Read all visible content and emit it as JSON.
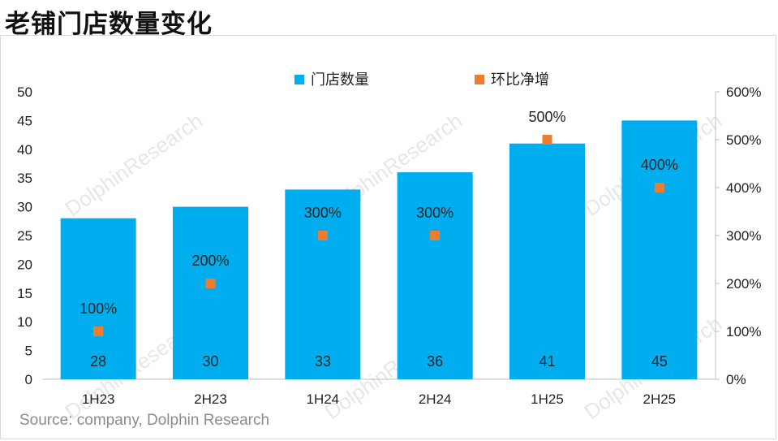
{
  "title": "老铺门店数量变化",
  "source": "Source: company, Dolphin Research",
  "watermark": "DolphinResearch",
  "chart_data": {
    "type": "bar",
    "categories": [
      "1H23",
      "2H23",
      "1H24",
      "2H24",
      "1H25",
      "2H25"
    ],
    "series": [
      {
        "name": "门店数量",
        "type": "bar",
        "axis": "left",
        "color": "#00AEEF",
        "values": [
          28,
          30,
          33,
          36,
          41,
          45
        ],
        "labels": [
          "28",
          "30",
          "33",
          "36",
          "41",
          "45"
        ]
      },
      {
        "name": "环比净增",
        "type": "scatter",
        "axis": "right",
        "color": "#ED7D31",
        "values": [
          100,
          200,
          300,
          300,
          500,
          400
        ],
        "labels": [
          "100%",
          "200%",
          "300%",
          "300%",
          "500%",
          "400%"
        ]
      }
    ],
    "y_left": {
      "min": 0,
      "max": 50,
      "ticks": [
        "0",
        "5",
        "10",
        "15",
        "20",
        "25",
        "30",
        "35",
        "40",
        "45",
        "50"
      ]
    },
    "y_right": {
      "min": 0,
      "max": 600,
      "ticks": [
        "0%",
        "100%",
        "200%",
        "300%",
        "400%",
        "500%",
        "600%"
      ]
    },
    "legend_position": "top-center",
    "grid": false
  }
}
